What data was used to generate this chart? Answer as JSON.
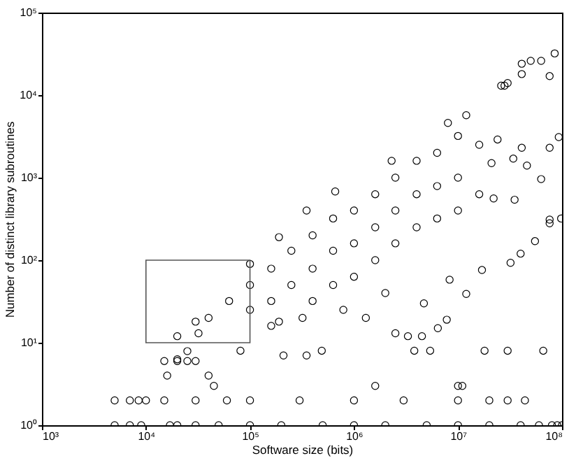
{
  "chart_data": {
    "type": "scatter",
    "xlabel": "Software size (bits)",
    "ylabel": "Number of distinct library subroutines",
    "log": "xy",
    "marker": "circle",
    "xlim": [
      1000,
      100000000
    ],
    "ylim": [
      1,
      100000
    ],
    "xticks": [
      {
        "value": 1000,
        "label": "10³"
      },
      {
        "value": 10000,
        "label": "10⁴"
      },
      {
        "value": 100000,
        "label": "10⁵"
      },
      {
        "value": 1000000,
        "label": "10⁶"
      },
      {
        "value": 10000000,
        "label": "10⁷"
      },
      {
        "value": 100000000,
        "label": "10⁸"
      }
    ],
    "yticks": [
      {
        "value": 1,
        "label": "10⁰"
      },
      {
        "value": 10,
        "label": "10¹"
      },
      {
        "value": 100,
        "label": "10²"
      },
      {
        "value": 1000,
        "label": "10³"
      },
      {
        "value": 10000,
        "label": "10⁴"
      },
      {
        "value": 100000,
        "label": "10⁵"
      }
    ],
    "series": [
      {
        "color": "#000000",
        "x": [
          25000,
          32000,
          40000,
          63000,
          100000,
          100000,
          160000,
          160000,
          250000,
          250000,
          400000,
          400000,
          400000,
          630000,
          630000,
          630000,
          1000000,
          1000000,
          1000000,
          1600000,
          1600000,
          1600000,
          2500000,
          2500000,
          2500000,
          4000000,
          4000000,
          4000000,
          6300000,
          6300000,
          6300000,
          10000000,
          10000000,
          10000000,
          16000000,
          16000000,
          160000,
          320000,
          790000,
          2000000,
          1300000,
          20000,
          20000,
          30000,
          100000,
          190000,
          350000,
          660000,
          2300000,
          8000000,
          12000000,
          28000000,
          41000000,
          63000000,
          85000000,
          76000000,
          93000000,
          76000000,
          76000000,
          98000000,
          190000,
          210000,
          350000,
          2500000,
          3300000,
          4500000,
          6400000,
          7800000,
          4700000,
          12000000,
          8300000,
          17000000,
          32000000,
          40000000,
          55000000,
          76000000,
          34000000,
          41000000,
          63000000,
          46000000,
          24000000,
          21000000,
          35000000,
          22000000,
          30000000,
          26000000,
          41000000,
          50000000,
          81000,
          490000,
          3800000,
          5400000,
          18000000,
          30000000,
          66000000,
          15000,
          20000,
          25000,
          30000,
          40000,
          16000,
          45000,
          1600000,
          10000000,
          11000000,
          5000,
          7000,
          8500,
          10000,
          15000,
          30000,
          60000,
          100000,
          300000,
          1000000,
          3000000,
          10000000,
          20000000,
          30000000,
          44000000,
          5000,
          7000,
          9000,
          17000,
          20000,
          30000,
          50000,
          100000,
          200000,
          500000,
          1000000,
          2000000,
          5000000,
          10000000,
          20000000,
          40000000,
          60000000,
          80000000,
          90000000,
          100000000
        ],
        "values": [
          7.9,
          13,
          20,
          32,
          50,
          25,
          79,
          32,
          130,
          50,
          200,
          79,
          32,
          320,
          130,
          50,
          400,
          160,
          63,
          630,
          250,
          100,
          1000,
          400,
          160,
          1600,
          630,
          250,
          2000,
          790,
          320,
          3200,
          1000,
          400,
          2500,
          630,
          16,
          20,
          25,
          40,
          20,
          6.3,
          12,
          18,
          90,
          190,
          400,
          680,
          1600,
          4600,
          5700,
          13000,
          24000,
          26000,
          32000,
          17000,
          3100,
          2300,
          310,
          320,
          18,
          7,
          7,
          13,
          12,
          12,
          15,
          19,
          30,
          39,
          58,
          76,
          93,
          120,
          170,
          280,
          1700,
          2300,
          960,
          1400,
          2900,
          1500,
          540,
          560,
          14000,
          13000,
          18000,
          26000,
          8,
          8,
          8,
          8,
          8,
          8,
          8,
          6,
          6,
          6,
          6,
          4,
          4,
          3,
          3,
          3,
          3,
          2,
          2,
          2,
          2,
          2,
          2,
          2,
          2,
          2,
          2,
          2,
          2,
          2,
          2,
          2,
          1,
          1,
          1,
          1,
          1,
          1,
          1,
          1,
          1,
          1,
          1,
          1,
          1,
          1,
          1,
          1,
          1,
          1,
          1,
          1
        ]
      }
    ]
  }
}
